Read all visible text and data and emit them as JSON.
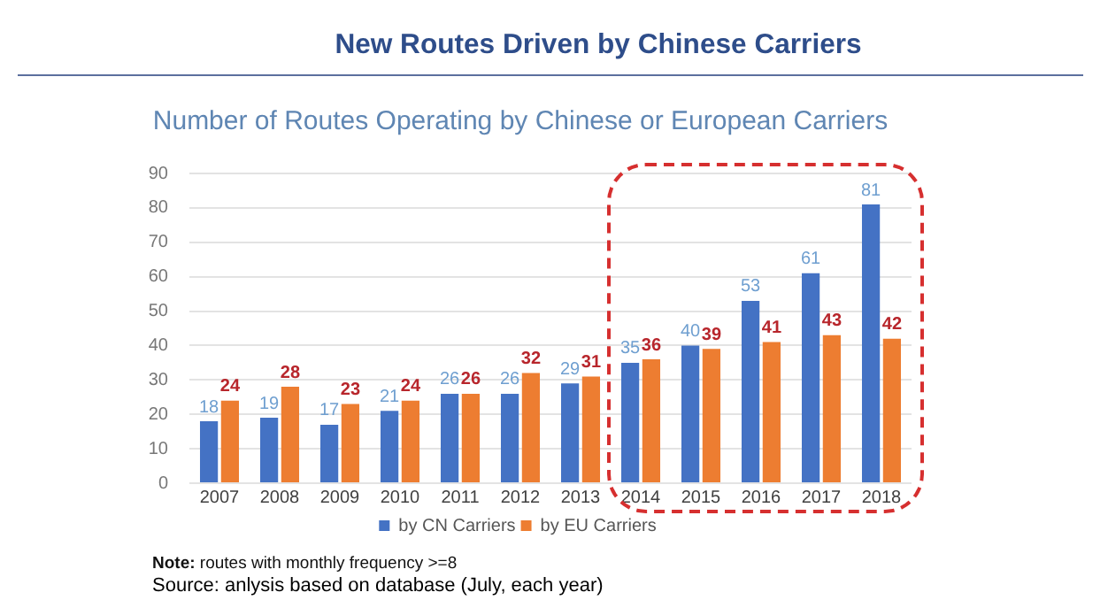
{
  "chart_data": {
    "type": "bar",
    "title": "New Routes Driven by Chinese Carriers",
    "subtitle": "Number of Routes Operating by Chinese or European Carriers",
    "categories": [
      "2007",
      "2008",
      "2009",
      "2010",
      "2011",
      "2012",
      "2013",
      "2014",
      "2015",
      "2016",
      "2017",
      "2018"
    ],
    "series": [
      {
        "name": "by CN Carriers",
        "color": "#4472c4",
        "values": [
          18,
          19,
          17,
          21,
          26,
          26,
          29,
          35,
          40,
          53,
          61,
          81
        ]
      },
      {
        "name": "by EU Carriers",
        "color": "#ed7d31",
        "values": [
          24,
          28,
          23,
          24,
          26,
          32,
          31,
          36,
          39,
          41,
          43,
          42
        ]
      }
    ],
    "ylim": [
      0,
      90
    ],
    "yticks": [
      0,
      10,
      20,
      30,
      40,
      50,
      60,
      70,
      80,
      90
    ],
    "grid": "y",
    "legend": "bottom",
    "data_labels": true,
    "annotations": [
      "Note: routes with monthly frequency >=8",
      "Source: anlysis based on database (July, each year)"
    ]
  }
}
